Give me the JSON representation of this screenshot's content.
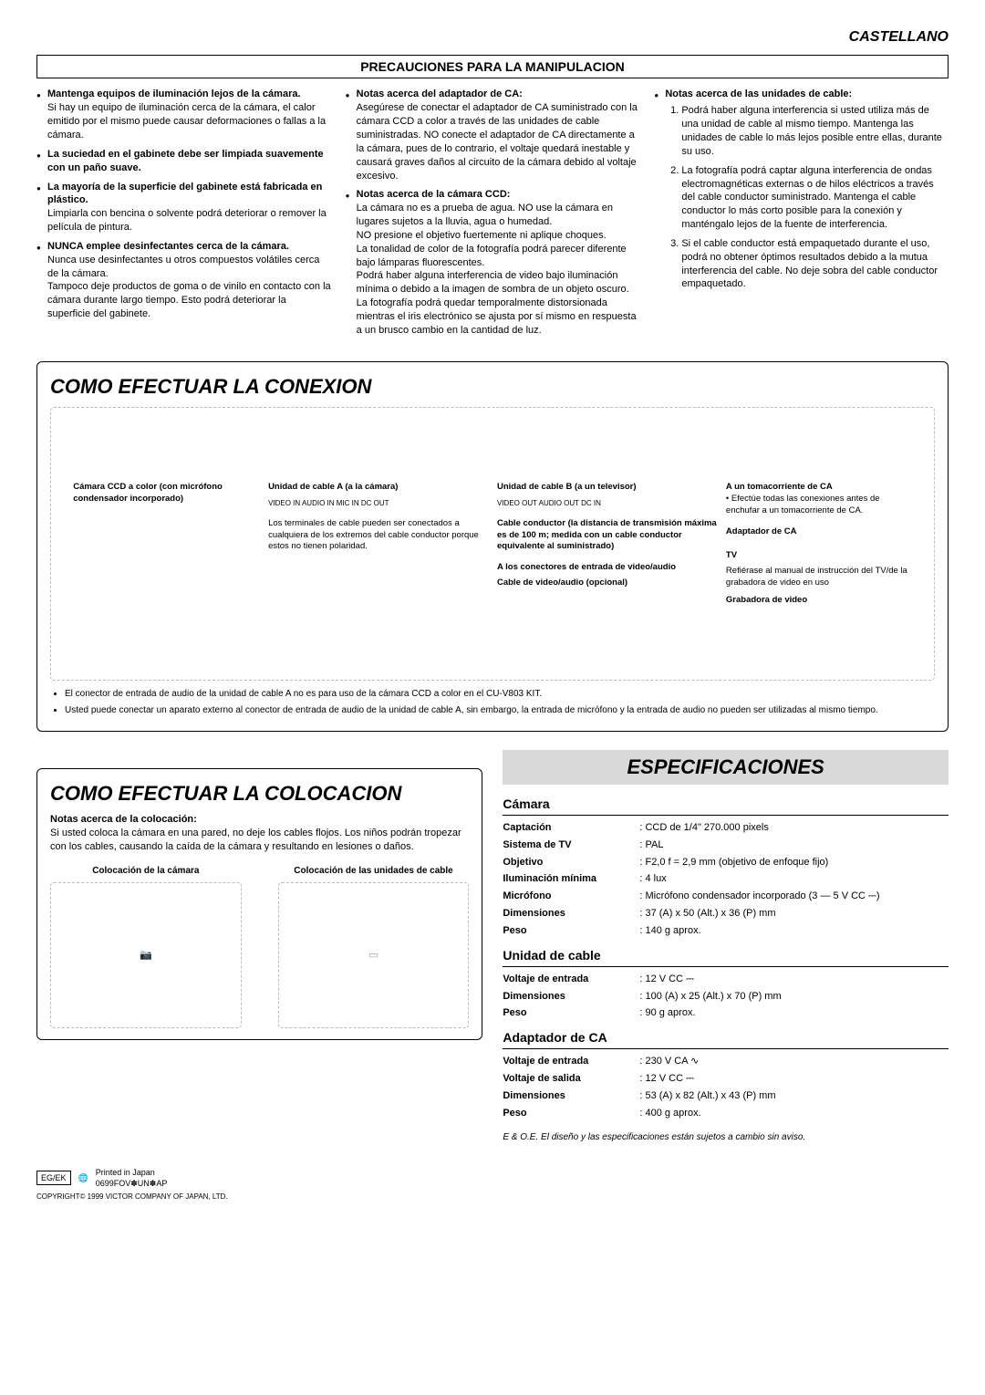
{
  "language_header": "CASTELLANO",
  "precautions": {
    "title": "PRECAUCIONES PARA LA MANIPULACION",
    "col1": [
      {
        "title": "Mantenga equipos de iluminación lejos de la cámara.",
        "body": "Si hay un equipo de iluminación cerca de la cámara, el calor emitido por el mismo puede causar deformaciones o fallas a la cámara."
      },
      {
        "title": "La suciedad en el gabinete debe ser limpiada suavemente con un paño suave.",
        "body": ""
      },
      {
        "title": "La mayoría de la superficie del gabinete está fabricada en plástico.",
        "body": "Limpiarla con bencina o solvente podrá deteriorar o remover la película de pintura."
      },
      {
        "title": "NUNCA emplee desinfectantes cerca de la cámara.",
        "body": "Nunca use desinfectantes u otros compuestos volátiles cerca de la cámara.\nTampoco deje productos de goma o de vinilo en contacto con la cámara durante largo tiempo. Esto podrá deteriorar la superficie del gabinete."
      }
    ],
    "col2": [
      {
        "title": "Notas acerca del adaptador de CA:",
        "body": "Asegúrese de conectar el adaptador de CA suministrado con la cámara CCD a color a través de las unidades de cable suministradas. NO conecte el adaptador de CA directamente a la cámara, pues de lo contrario, el voltaje quedará inestable y causará graves daños al circuito de la cámara debido al voltaje excesivo."
      },
      {
        "title": "Notas acerca de la cámara CCD:",
        "body": "La cámara no es a prueba de agua. NO use la cámara en lugares sujetos a la lluvia, agua o humedad.\nNO presione el objetivo fuertemente ni aplique choques.\nLa tonalidad de color de la fotografía podrá parecer diferente bajo lámparas fluorescentes.\nPodrá haber alguna interferencia de video bajo iluminación mínima o debido a la imagen de sombra de un objeto oscuro.\nLa fotografía podrá quedar temporalmente distorsionada mientras el iris electrónico se ajusta por sí mismo en respuesta a un brusco cambio en la cantidad de luz."
      }
    ],
    "col3": {
      "title": "Notas acerca de las unidades de cable:",
      "items": [
        "Podrá haber alguna interferencia si usted utiliza más de una unidad de cable al mismo tiempo. Mantenga las unidades de cable lo más lejos posible entre ellas, durante su uso.",
        "La fotografía podrá captar alguna interferencia de ondas electromagnéticas externas o de hilos eléctricos a través del cable conductor suministrado. Mantenga el cable conductor lo más corto posible para la conexión y manténgalo lejos de la fuente de interferencia.",
        "Si el cable conductor está empaquetado durante el uso, podrá no obtener óptimos resultados debido a la mutua interferencia del cable. No deje sobra del cable conductor empaquetado."
      ]
    }
  },
  "connection": {
    "title": "COMO EFECTUAR LA CONEXION",
    "diagram_labels": {
      "camera": "Cámara CCD a color (con micrófono condensador incorporado)",
      "cable_unit_a": "Unidad de cable A (a la cámara)",
      "cable_unit_b": "Unidad de cable B (a un televisor)",
      "terminals_note": "Los terminales de cable pueden ser conectados a cualquiera de los extremos del cable conductor porque estos no tienen polaridad.",
      "lead_cable": "Cable conductor (la distancia de transmisión máxima es de 100 m; medida con un cable conductor equivalente al suministrado)",
      "ac_adapter": "Adaptador de CA",
      "ac_outlet": "A un tomacorriente de CA",
      "ac_outlet_note": "• Efectúe todas las conexiones antes de enchufar a un tomacorriente de CA.",
      "to_video_audio_in": "A los conectores de entrada de video/audio",
      "av_cable": "Cable de video/audio (opcional)",
      "tv": "TV",
      "vcr": "Grabadora de video",
      "refer_note": "Refiérase al manual de instrucción del TV/de la grabadora de video en uso",
      "ports_a": "VIDEO IN  AUDIO IN  MIC IN  DC OUT",
      "ports_b": "VIDEO OUT  AUDIO OUT  DC IN"
    },
    "notes": [
      "El conector de entrada de audio de la unidad de cable A no es para uso de la cámara CCD a color en el CU-V803 KIT.",
      "Usted puede conectar un aparato externo al conector de entrada de audio de la unidad de cable A, sin embargo, la entrada de micrófono y la entrada de audio no pueden ser utilizadas al mismo tiempo."
    ]
  },
  "mounting": {
    "title": "COMO EFECTUAR LA COLOCACION",
    "note_title": "Notas acerca de la colocación:",
    "note_body": "Si usted coloca la cámara en una pared, no deje los cables flojos. Los niños podrán tropezar con los cables, causando la caída de la cámara y resultando en lesiones o daños.",
    "caption_camera": "Colocación de la cámara",
    "caption_cable": "Colocación de las unidades de cable"
  },
  "specs": {
    "title": "ESPECIFICACIONES",
    "groups": [
      {
        "name": "Cámara",
        "rows": [
          {
            "label": "Captación",
            "value": "CCD de 1/4\" 270.000 pixels"
          },
          {
            "label": "Sistema de TV",
            "value": "PAL"
          },
          {
            "label": "Objetivo",
            "value": "F2,0  f = 2,9 mm (objetivo de enfoque fijo)"
          },
          {
            "label": "Iluminación mínima",
            "value": "4 lux"
          },
          {
            "label": "Micrófono",
            "value": "Micrófono condensador incorporado (3 — 5 V CC ⎓)"
          },
          {
            "label": "Dimensiones",
            "value": "37 (A) x 50 (Alt.) x 36 (P) mm"
          },
          {
            "label": "Peso",
            "value": "140 g aprox."
          }
        ]
      },
      {
        "name": "Unidad de cable",
        "rows": [
          {
            "label": "Voltaje de entrada",
            "value": "12 V CC ⎓"
          },
          {
            "label": "Dimensiones",
            "value": "100 (A) x 25 (Alt.) x 70 (P) mm"
          },
          {
            "label": "Peso",
            "value": "90 g aprox."
          }
        ]
      },
      {
        "name": "Adaptador de CA",
        "rows": [
          {
            "label": "Voltaje de entrada",
            "value": "230 V CA ∿"
          },
          {
            "label": "Voltaje de salida",
            "value": "12 V CC ⎓"
          },
          {
            "label": "Dimensiones",
            "value": "53 (A) x 82 (Alt.) x 43 (P) mm"
          },
          {
            "label": "Peso",
            "value": "400 g aprox."
          }
        ]
      }
    ],
    "disclaimer": "E & O.E. El diseño y las especificaciones están sujetos a cambio sin aviso."
  },
  "footer": {
    "egek": "EG/EK",
    "printed": "Printed in Japan",
    "code": "0699FOV✽UN✽AP",
    "copyright": "COPYRIGHT© 1999 VICTOR COMPANY OF JAPAN, LTD."
  }
}
